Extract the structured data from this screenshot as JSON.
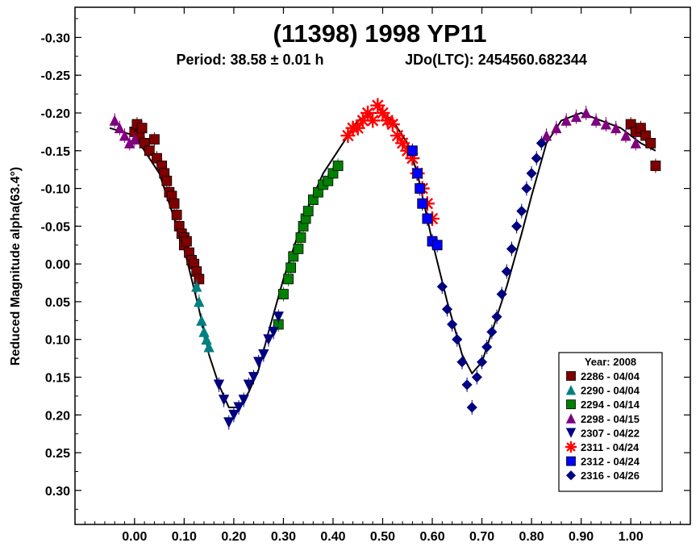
{
  "chart_data": {
    "type": "scatter",
    "title": "(11398) 1998 YP11",
    "subtitle_period": "Period: 38.58 ± 0.01 h",
    "subtitle_epoch": "JDo(LTC): 2454560.682344",
    "ylabel": "Reduced Magnitude alpha(63.4°)",
    "xlabel": "",
    "xlim": [
      -0.12,
      1.12
    ],
    "ylim": [
      -0.34,
      0.345
    ],
    "y_inverted": true,
    "xticks": [
      "0.00",
      "0.10",
      "0.20",
      "0.30",
      "0.40",
      "0.50",
      "0.60",
      "0.70",
      "0.80",
      "0.90",
      "1.00"
    ],
    "xtick_values": [
      0,
      0.1,
      0.2,
      0.3,
      0.4,
      0.5,
      0.6,
      0.7,
      0.8,
      0.9,
      1.0
    ],
    "yticks": [
      "-0.30",
      "-0.25",
      "-0.20",
      "-0.15",
      "-0.10",
      "-0.05",
      "0.00",
      "0.05",
      "0.10",
      "0.15",
      "0.20",
      "0.25",
      "0.30"
    ],
    "ytick_values": [
      -0.3,
      -0.25,
      -0.2,
      -0.15,
      -0.1,
      -0.05,
      0,
      0.05,
      0.1,
      0.15,
      0.2,
      0.25,
      0.3
    ],
    "grid": false,
    "legend_position": "bottom-right",
    "legend_title": "Year: 2008",
    "fit_curve": {
      "x": [
        -0.05,
        0.0,
        0.05,
        0.1,
        0.13,
        0.15,
        0.17,
        0.19,
        0.21,
        0.23,
        0.25,
        0.27,
        0.3,
        0.34,
        0.38,
        0.42,
        0.45,
        0.48,
        0.5,
        0.52,
        0.55,
        0.57,
        0.6,
        0.63,
        0.66,
        0.68,
        0.7,
        0.72,
        0.75,
        0.78,
        0.8,
        0.83,
        0.86,
        0.9,
        0.94,
        0.98,
        1.02,
        1.05
      ],
      "y": [
        -0.18,
        -0.17,
        -0.12,
        -0.02,
        0.06,
        0.12,
        0.16,
        0.19,
        0.19,
        0.17,
        0.14,
        0.09,
        0.02,
        -0.06,
        -0.12,
        -0.16,
        -0.19,
        -0.2,
        -0.2,
        -0.19,
        -0.16,
        -0.12,
        -0.03,
        0.05,
        0.12,
        0.145,
        0.13,
        0.09,
        0.03,
        -0.04,
        -0.09,
        -0.16,
        -0.19,
        -0.2,
        -0.19,
        -0.18,
        -0.16,
        -0.15
      ]
    },
    "series": [
      {
        "name": "2286 - 04/04",
        "marker": "square",
        "color": "#800000",
        "x": [
          0.0,
          0.005,
          0.01,
          0.015,
          0.02,
          0.03,
          0.04,
          0.045,
          0.055,
          0.06,
          0.065,
          0.07,
          0.075,
          0.08,
          0.085,
          0.09,
          0.095,
          0.1,
          0.1,
          0.105,
          0.11,
          0.115,
          0.12,
          0.125,
          0.13,
          1.0,
          1.01,
          1.02,
          1.03,
          1.04,
          1.05
        ],
        "y": [
          -0.175,
          -0.185,
          -0.17,
          -0.18,
          -0.16,
          -0.15,
          -0.165,
          -0.14,
          -0.13,
          -0.12,
          -0.11,
          -0.095,
          -0.09,
          -0.08,
          -0.065,
          -0.05,
          -0.04,
          -0.035,
          -0.025,
          -0.03,
          -0.015,
          -0.005,
          0.0,
          0.01,
          0.02,
          -0.185,
          -0.175,
          -0.18,
          -0.17,
          -0.16,
          -0.13
        ]
      },
      {
        "name": "2290 - 04/04",
        "marker": "triangle-up",
        "color": "#008080",
        "x": [
          0.125,
          0.13,
          0.135,
          0.14,
          0.145,
          0.15
        ],
        "y": [
          0.03,
          0.05,
          0.075,
          0.09,
          0.1,
          0.11
        ]
      },
      {
        "name": "2294 - 04/14",
        "marker": "square",
        "color": "#008000",
        "x": [
          0.29,
          0.3,
          0.31,
          0.315,
          0.32,
          0.33,
          0.335,
          0.34,
          0.345,
          0.35,
          0.36,
          0.37,
          0.38,
          0.39,
          0.4,
          0.41
        ],
        "y": [
          0.08,
          0.04,
          0.02,
          0.005,
          -0.01,
          -0.02,
          -0.035,
          -0.05,
          -0.06,
          -0.07,
          -0.085,
          -0.095,
          -0.105,
          -0.11,
          -0.12,
          -0.13
        ]
      },
      {
        "name": "2298 - 04/15",
        "marker": "triangle-up",
        "color": "#800080",
        "x": [
          -0.04,
          -0.03,
          -0.02,
          -0.01,
          0.0,
          0.83,
          0.85,
          0.87,
          0.89,
          0.91,
          0.93,
          0.95,
          0.97,
          0.99,
          1.01
        ],
        "y": [
          -0.19,
          -0.18,
          -0.17,
          -0.16,
          -0.165,
          -0.17,
          -0.18,
          -0.19,
          -0.195,
          -0.2,
          -0.19,
          -0.185,
          -0.18,
          -0.17,
          -0.16
        ]
      },
      {
        "name": "2307 - 04/22",
        "marker": "triangle-down",
        "color": "#000080",
        "x": [
          0.17,
          0.18,
          0.19,
          0.2,
          0.21,
          0.22,
          0.23,
          0.24,
          0.25,
          0.26,
          0.27,
          0.28,
          0.29
        ],
        "y": [
          0.16,
          0.18,
          0.21,
          0.2,
          0.19,
          0.18,
          0.16,
          0.15,
          0.13,
          0.12,
          0.1,
          0.09,
          0.07
        ]
      },
      {
        "name": "2311 - 04/24",
        "marker": "asterisk",
        "color": "#ff0000",
        "x": [
          0.43,
          0.44,
          0.45,
          0.46,
          0.47,
          0.48,
          0.49,
          0.5,
          0.51,
          0.52,
          0.53,
          0.54,
          0.55,
          0.56,
          0.57,
          0.58,
          0.59,
          0.6
        ],
        "y": [
          -0.17,
          -0.18,
          -0.18,
          -0.19,
          -0.2,
          -0.19,
          -0.21,
          -0.2,
          -0.19,
          -0.185,
          -0.17,
          -0.16,
          -0.15,
          -0.14,
          -0.12,
          -0.1,
          -0.08,
          -0.06
        ]
      },
      {
        "name": "2312 - 04/24",
        "marker": "square",
        "color": "#0000ff",
        "x": [
          0.56,
          0.57,
          0.575,
          0.58,
          0.59,
          0.6,
          0.61
        ],
        "y": [
          -0.15,
          -0.12,
          -0.1,
          -0.08,
          -0.06,
          -0.03,
          -0.025
        ]
      },
      {
        "name": "2316 - 04/26",
        "marker": "diamond",
        "color": "#000080",
        "x": [
          0.62,
          0.63,
          0.64,
          0.65,
          0.66,
          0.67,
          0.68,
          0.69,
          0.7,
          0.71,
          0.72,
          0.73,
          0.74,
          0.75,
          0.76,
          0.77,
          0.78,
          0.79,
          0.8,
          0.81,
          0.82
        ],
        "y": [
          0.03,
          0.06,
          0.08,
          0.1,
          0.13,
          0.16,
          0.19,
          0.15,
          0.13,
          0.11,
          0.09,
          0.07,
          0.04,
          0.01,
          -0.02,
          -0.05,
          -0.07,
          -0.1,
          -0.12,
          -0.14,
          -0.16
        ]
      }
    ]
  }
}
